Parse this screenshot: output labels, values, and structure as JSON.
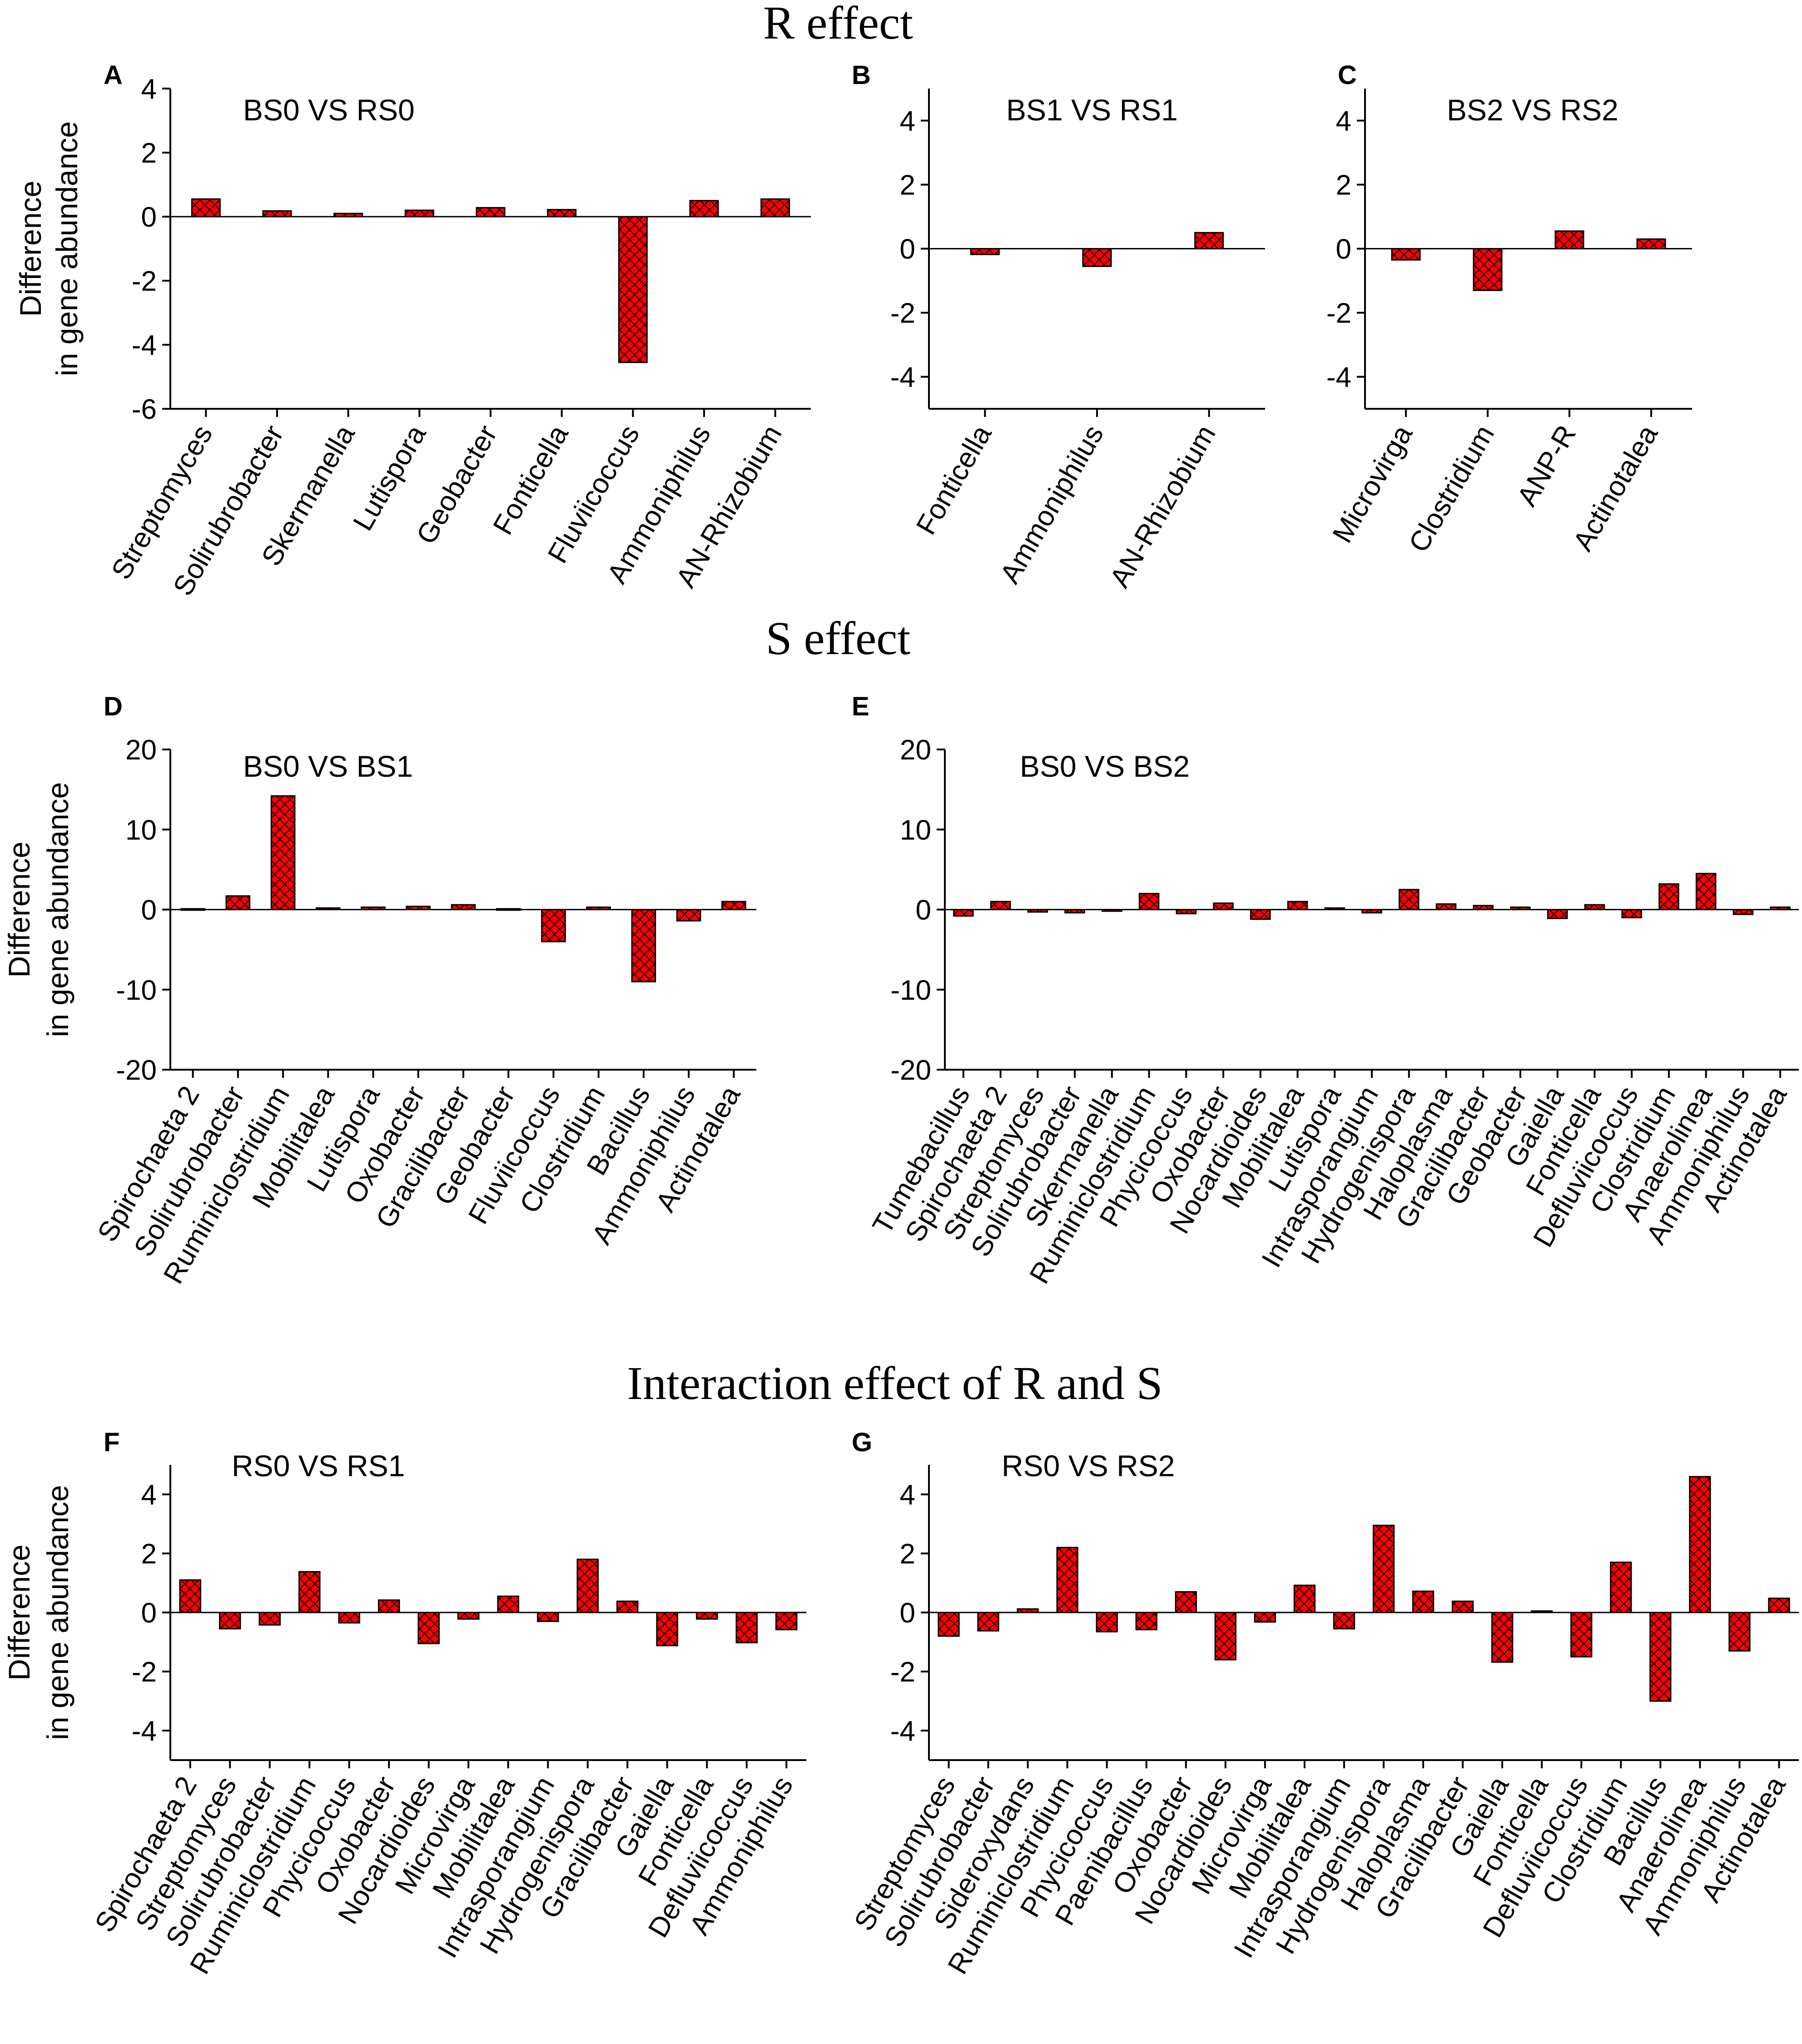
{
  "sections": [
    {
      "title": "R effect"
    },
    {
      "title": "S effect"
    },
    {
      "title": "Interaction effect of R and S"
    }
  ],
  "colors": {
    "bar_fill": "#ff0000",
    "hatch": "#000000",
    "axis": "#000000"
  },
  "chart_data": [
    {
      "type": "bar",
      "letter": "A",
      "title": "BS0 VS RS0",
      "ylabel": [
        "Difference",
        "in  gene abundance"
      ],
      "ylim": [
        -6,
        4
      ],
      "yticks": [
        4,
        2,
        0,
        -2,
        -4,
        -6
      ],
      "categories": [
        "Streptomyces",
        "Solirubrobacter",
        "Skermanella",
        "Lutispora",
        "Geobacter",
        "Fonticella",
        "Fluviicoccus",
        "Ammoniphilus",
        "AN-Rhizobium"
      ],
      "values": [
        0.55,
        0.18,
        0.1,
        0.2,
        0.28,
        0.22,
        -4.55,
        0.5,
        0.55
      ]
    },
    {
      "type": "bar",
      "letter": "B",
      "title": "BS1 VS RS1",
      "ylabel": [],
      "ylim": [
        -5,
        5
      ],
      "yticks": [
        4,
        2,
        0,
        -2,
        -4
      ],
      "categories": [
        "Fonticella",
        "Ammoniphilus",
        "AN-Rhizobium"
      ],
      "values": [
        -0.18,
        -0.55,
        0.5
      ]
    },
    {
      "type": "bar",
      "letter": "C",
      "title": "BS2 VS RS2",
      "ylabel": [],
      "ylim": [
        -5,
        5
      ],
      "yticks": [
        4,
        2,
        0,
        -2,
        -4
      ],
      "categories": [
        "Microvirga",
        "Clostridium",
        "ANP-R",
        "Actinotalea"
      ],
      "values": [
        -0.35,
        -1.3,
        0.55,
        0.3
      ]
    },
    {
      "type": "bar",
      "letter": "D",
      "title": "BS0 VS BS1",
      "ylabel": [
        "Difference",
        "in  gene abundance"
      ],
      "ylim": [
        -20,
        20
      ],
      "yticks": [
        20,
        10,
        0,
        -10,
        -20
      ],
      "categories": [
        "Spirochaeta 2",
        "Solirubrobacter",
        "Ruminiclostridium",
        "Mobilitalea",
        "Lutispora",
        "Oxobacter",
        "Gracilibacter",
        "Geobacter",
        "Fluviicoccus",
        "Clostridium",
        "Bacillus",
        "Ammoniphilus",
        "Actinotalea"
      ],
      "values": [
        0.1,
        1.7,
        14.2,
        0.2,
        0.3,
        0.4,
        0.6,
        0.1,
        -4.0,
        0.3,
        -9.0,
        -1.4,
        1.0
      ]
    },
    {
      "type": "bar",
      "letter": "E",
      "title": "BS0 VS BS2",
      "ylabel": [],
      "ylim": [
        -20,
        20
      ],
      "yticks": [
        20,
        10,
        0,
        -10,
        -20
      ],
      "categories": [
        "Tumebacillus",
        "Spirochaeta 2",
        "Streptomyces",
        "Solirubrobacter",
        "Skermanella",
        "Ruminiclostridium",
        "Phycicoccus",
        "Oxobacter",
        "Nocardioides",
        "Mobilitalea",
        "Lutispora",
        "Intrasporangium",
        "Hydrogenispora",
        "Haloplasma",
        "Gracilibacter",
        "Geobacter",
        "Gaiella",
        "Fonticella",
        "Defluviicoccus",
        "Clostridium",
        "Anaerolinea",
        "Ammoniphilus",
        "Actinotalea"
      ],
      "values": [
        -0.8,
        1.0,
        -0.3,
        -0.4,
        -0.2,
        2.0,
        -0.5,
        0.8,
        -1.2,
        1.0,
        0.2,
        -0.4,
        2.5,
        0.7,
        0.5,
        0.3,
        -1.1,
        0.6,
        -1.0,
        3.2,
        4.5,
        -0.6,
        0.3
      ]
    },
    {
      "type": "bar",
      "letter": "F",
      "title": "RS0 VS RS1",
      "ylabel": [
        "Difference",
        "in  gene abundance"
      ],
      "ylim": [
        -5,
        5
      ],
      "yticks": [
        4,
        2,
        0,
        -2,
        -4
      ],
      "categories": [
        "Spirochaeta 2",
        "Streptomyces",
        "Solirubrobacter",
        "Ruminiclostridium",
        "Phycicoccus",
        "Oxobacter",
        "Nocardioides",
        "Microvirga",
        "Mobilitalea",
        "Intrasporangium",
        "Hydrogenispora",
        "Gracilibacter",
        "Gaiella",
        "Fonticella",
        "Defluviicoccus",
        "Ammoniphilus"
      ],
      "values": [
        1.1,
        -0.55,
        -0.42,
        1.38,
        -0.35,
        0.42,
        -1.05,
        -0.22,
        0.55,
        -0.3,
        1.8,
        0.38,
        -1.12,
        -0.22,
        -1.02,
        -0.58
      ]
    },
    {
      "type": "bar",
      "letter": "G",
      "title": "RS0 VS RS2",
      "ylabel": [],
      "ylim": [
        -5,
        5
      ],
      "yticks": [
        4,
        2,
        0,
        -2,
        -4
      ],
      "categories": [
        "Streptomyces",
        "Solirubrobacter",
        "Sideroxydans",
        "Ruminiclostridium",
        "Phycicoccus",
        "Paenibacillus",
        "Oxobacter",
        "Nocardioides",
        "Microvirga",
        "Mobilitalea",
        "Intrasporangium",
        "Hydrogenispora",
        "Haloplasma",
        "Gracilibacter",
        "Gaiella",
        "Fonticella",
        "Defluviicoccus",
        "Clostridium",
        "Bacillus",
        "Anaerolinea",
        "Ammoniphilus",
        "Actinotalea"
      ],
      "values": [
        -0.8,
        -0.62,
        0.12,
        2.2,
        -0.65,
        -0.58,
        0.7,
        -1.6,
        -0.32,
        0.92,
        -0.55,
        2.95,
        0.72,
        0.38,
        -1.68,
        0.05,
        -1.5,
        1.7,
        -3.0,
        4.6,
        -1.3,
        0.48
      ]
    }
  ]
}
